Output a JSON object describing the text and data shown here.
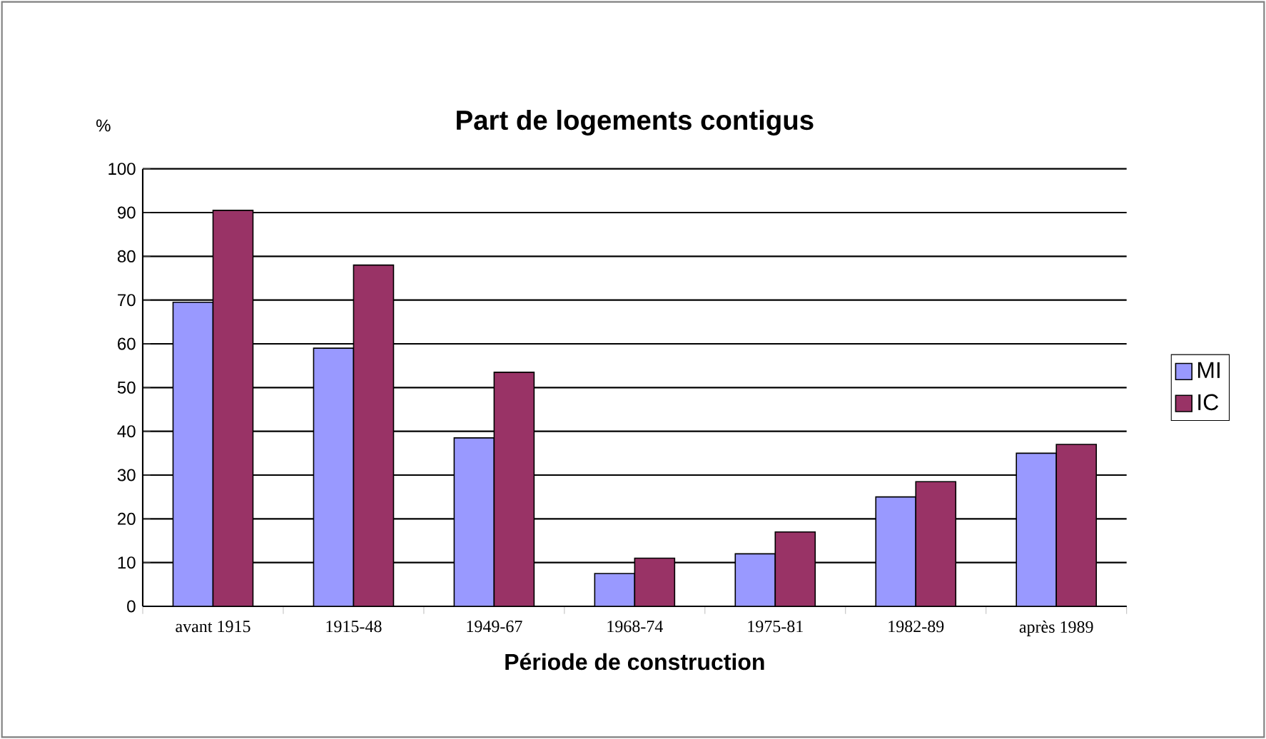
{
  "chart_data": {
    "type": "bar",
    "title": "Part de logements contigus",
    "xlabel": "Période de construction",
    "ylabel": "%",
    "categories": [
      "avant 1915",
      "1915-48",
      "1949-67",
      "1968-74",
      "1975-81",
      "1982-89",
      "après 1989"
    ],
    "series": [
      {
        "name": "MI",
        "color": "#9999ff",
        "values": [
          69.5,
          59,
          38.5,
          7.5,
          12,
          25,
          35
        ]
      },
      {
        "name": "IC",
        "color": "#993366",
        "values": [
          90.5,
          78,
          53.5,
          11,
          17,
          28.5,
          37
        ]
      }
    ],
    "ylim": [
      0,
      100
    ],
    "yticks": [
      0,
      10,
      20,
      30,
      40,
      50,
      60,
      70,
      80,
      90,
      100
    ],
    "grid": "y",
    "legend": "right"
  }
}
